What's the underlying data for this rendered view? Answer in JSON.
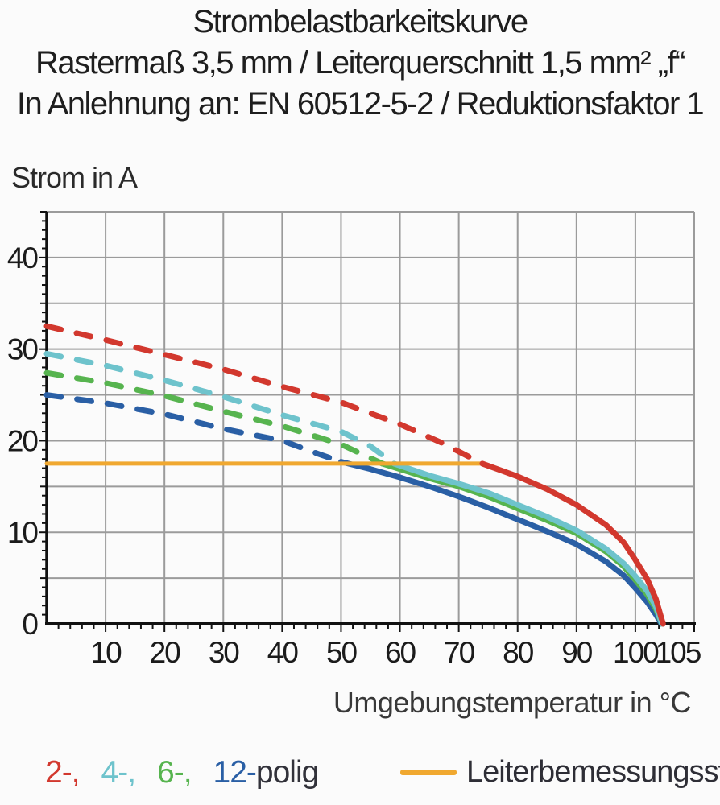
{
  "title": {
    "line1": "Strombelastbarkeitskurve",
    "line2": "Rastermaß 3,5 mm / Leiterquerschnitt 1,5 mm² „f“",
    "line3": "In Anlehnung an: EN 60512-5-2 / Reduktionsfaktor 1"
  },
  "legend": {
    "items": [
      {
        "label": "2-,",
        "color": "#d2382e",
        "series": "2-polig"
      },
      {
        "label": "4-,",
        "color": "#6ec3cc",
        "series": "4-polig"
      },
      {
        "label": "6-,",
        "color": "#57b44f",
        "series": "6-polig"
      },
      {
        "label": "12-",
        "color": "#2a5fa5",
        "series": "12-polig"
      }
    ],
    "suffix": "polig",
    "rated_label": "Leiterbemessungsstrom",
    "rated_color": "#f0a830"
  },
  "chart_data": {
    "type": "line",
    "title": "Strombelastbarkeitskurve — Rastermaß 3,5 mm / Leiterquerschnitt 1,5 mm² „f“ — In Anlehnung an: EN 60512-5-2 / Reduktionsfaktor 1",
    "xlabel": "Umgebungstemperatur in °C",
    "ylabel": "Strom in A",
    "xlim": [
      0,
      110
    ],
    "ylim": [
      0,
      45
    ],
    "x_ticks": [
      10,
      20,
      30,
      40,
      50,
      60,
      70,
      80,
      90,
      100,
      105
    ],
    "y_ticks": [
      0,
      10,
      20,
      30,
      40
    ],
    "x_gridline_step": 10,
    "y_gridline_step": 5,
    "x_minor_tick_step": 2,
    "y_minor_tick_step": 1,
    "grid": true,
    "grid_color": "#9b9b9b",
    "axis_color": "#111111",
    "legend_position": "bottom",
    "rated_current": {
      "name": "Leiterbemessungsstrom",
      "value": 17.5,
      "x_range": [
        0,
        74
      ],
      "color": "#f0a830"
    },
    "series": [
      {
        "name": "12-polig",
        "poles": 12,
        "color": "#2a5fa5",
        "dash_until_x": 50,
        "points": [
          [
            0,
            25.0
          ],
          [
            10,
            24.1
          ],
          [
            20,
            22.9
          ],
          [
            30,
            21.3
          ],
          [
            40,
            20.0
          ],
          [
            46,
            18.6
          ],
          [
            50,
            17.7
          ],
          [
            55,
            16.9
          ],
          [
            60,
            16.0
          ],
          [
            65,
            15.0
          ],
          [
            70,
            13.9
          ],
          [
            75,
            12.7
          ],
          [
            80,
            11.4
          ],
          [
            85,
            10.1
          ],
          [
            90,
            8.7
          ],
          [
            95,
            6.8
          ],
          [
            98,
            5.3
          ],
          [
            100,
            3.9
          ],
          [
            102,
            2.4
          ],
          [
            103.5,
            1.0
          ],
          [
            104.4,
            0
          ]
        ]
      },
      {
        "name": "6-polig",
        "poles": 6,
        "color": "#57b44f",
        "dash_until_x": 57,
        "points": [
          [
            0,
            27.4
          ],
          [
            10,
            26.3
          ],
          [
            20,
            24.9
          ],
          [
            30,
            23.2
          ],
          [
            40,
            21.6
          ],
          [
            50,
            19.6
          ],
          [
            57,
            17.5
          ],
          [
            65,
            15.9
          ],
          [
            70,
            15.0
          ],
          [
            75,
            13.9
          ],
          [
            80,
            12.6
          ],
          [
            85,
            11.3
          ],
          [
            90,
            9.9
          ],
          [
            95,
            7.9
          ],
          [
            98,
            6.3
          ],
          [
            100,
            4.8
          ],
          [
            102,
            3.2
          ],
          [
            103.5,
            1.6
          ],
          [
            104.5,
            0
          ]
        ]
      },
      {
        "name": "4-polig",
        "poles": 4,
        "color": "#6ec3cc",
        "dash_until_x": 59,
        "points": [
          [
            0,
            29.5
          ],
          [
            10,
            28.2
          ],
          [
            20,
            26.6
          ],
          [
            30,
            24.8
          ],
          [
            40,
            22.8
          ],
          [
            50,
            21.0
          ],
          [
            55,
            19.4
          ],
          [
            59,
            17.5
          ],
          [
            65,
            16.2
          ],
          [
            70,
            15.3
          ],
          [
            75,
            14.3
          ],
          [
            80,
            13.0
          ],
          [
            85,
            11.7
          ],
          [
            90,
            10.2
          ],
          [
            95,
            8.2
          ],
          [
            98,
            6.6
          ],
          [
            100,
            5.2
          ],
          [
            102,
            3.6
          ],
          [
            103.5,
            1.9
          ],
          [
            104.5,
            0
          ]
        ]
      },
      {
        "name": "2-polig",
        "poles": 2,
        "color": "#d2382e",
        "dash_until_x": 74,
        "points": [
          [
            0,
            32.5
          ],
          [
            10,
            31.0
          ],
          [
            20,
            29.4
          ],
          [
            30,
            27.8
          ],
          [
            40,
            25.9
          ],
          [
            50,
            24.2
          ],
          [
            60,
            21.8
          ],
          [
            67,
            19.8
          ],
          [
            74,
            17.5
          ],
          [
            80,
            16.1
          ],
          [
            85,
            14.7
          ],
          [
            90,
            13.0
          ],
          [
            95,
            10.8
          ],
          [
            98,
            8.9
          ],
          [
            100,
            7.0
          ],
          [
            102,
            4.9
          ],
          [
            103.5,
            2.7
          ],
          [
            104.7,
            0
          ]
        ]
      }
    ]
  }
}
